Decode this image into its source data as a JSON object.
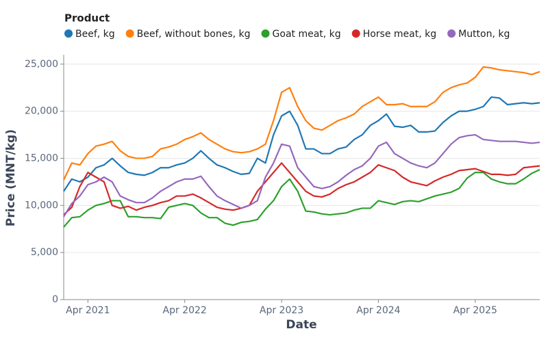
{
  "chart_data": {
    "type": "line",
    "legend_title": "Product",
    "x_label": "Date",
    "y_label": "Price (MNT/kg)",
    "x": [
      "2021-01",
      "2021-02",
      "2021-03",
      "2021-04",
      "2021-05",
      "2021-06",
      "2021-07",
      "2021-08",
      "2021-09",
      "2021-10",
      "2021-11",
      "2021-12",
      "2022-01",
      "2022-02",
      "2022-03",
      "2022-04",
      "2022-05",
      "2022-06",
      "2022-07",
      "2022-08",
      "2022-09",
      "2022-10",
      "2022-11",
      "2022-12",
      "2023-01",
      "2023-02",
      "2023-03",
      "2023-04",
      "2023-05",
      "2023-06",
      "2023-07",
      "2023-08",
      "2023-09",
      "2023-10",
      "2023-11",
      "2023-12",
      "2024-01",
      "2024-02",
      "2024-03",
      "2024-04",
      "2024-05",
      "2024-06",
      "2024-07",
      "2024-08",
      "2024-09",
      "2024-10",
      "2024-11",
      "2024-12",
      "2025-01",
      "2025-02",
      "2025-03",
      "2025-04",
      "2025-05",
      "2025-06",
      "2025-07",
      "2025-08",
      "2025-09",
      "2025-10",
      "2025-11",
      "2025-12"
    ],
    "series": [
      {
        "name": "Beef, kg",
        "color": "#1f77b4",
        "values": [
          11500,
          12800,
          12500,
          13000,
          14000,
          14300,
          15000,
          14200,
          13500,
          13300,
          13200,
          13500,
          14000,
          14000,
          14300,
          14500,
          15000,
          15800,
          15000,
          14300,
          14000,
          13600,
          13300,
          13400,
          15000,
          14500,
          17500,
          19500,
          20000,
          18500,
          16000,
          16000,
          15500,
          15500,
          16000,
          16200,
          17000,
          17500,
          18500,
          19000,
          19700,
          18400,
          18300,
          18500,
          17800,
          17800,
          17900,
          18800,
          19500,
          20000,
          20000,
          20200,
          20500,
          21500,
          21400,
          20700,
          20800,
          20900,
          20800,
          20900
        ]
      },
      {
        "name": "Beef, without bones, kg",
        "color": "#ff7f0e",
        "values": [
          12700,
          14500,
          14300,
          15500,
          16300,
          16500,
          16800,
          15800,
          15200,
          15000,
          15000,
          15200,
          16000,
          16200,
          16500,
          17000,
          17300,
          17700,
          17000,
          16500,
          16000,
          15700,
          15600,
          15700,
          16000,
          16500,
          19000,
          22000,
          22500,
          20500,
          19000,
          18200,
          18000,
          18500,
          19000,
          19300,
          19700,
          20500,
          21000,
          21500,
          20700,
          20700,
          20800,
          20500,
          20500,
          20500,
          21000,
          22000,
          22500,
          22800,
          23000,
          23600,
          24700,
          24600,
          24400,
          24300,
          24200,
          24100,
          23900,
          24200
        ]
      },
      {
        "name": "Goat meat, kg",
        "color": "#2ca02c",
        "values": [
          7700,
          8700,
          8800,
          9500,
          10000,
          10200,
          10500,
          10500,
          8800,
          8800,
          8700,
          8700,
          8600,
          9800,
          10000,
          10200,
          10000,
          9200,
          8700,
          8700,
          8100,
          7900,
          8200,
          8300,
          8500,
          9600,
          10500,
          12000,
          12800,
          11500,
          9400,
          9300,
          9100,
          9000,
          9100,
          9200,
          9500,
          9700,
          9700,
          10500,
          10300,
          10100,
          10400,
          10500,
          10400,
          10700,
          11000,
          11200,
          11400,
          11800,
          12900,
          13500,
          13500,
          12800,
          12500,
          12300,
          12300,
          12800,
          13400,
          13800
        ]
      },
      {
        "name": "Horse meat, kg",
        "color": "#d62728",
        "values": [
          9000,
          9800,
          12000,
          13500,
          13000,
          12500,
          10000,
          9700,
          9900,
          9500,
          9800,
          10000,
          10300,
          10500,
          11000,
          11000,
          11200,
          10800,
          10300,
          9800,
          9600,
          9500,
          9700,
          10000,
          11500,
          12500,
          13500,
          14500,
          13500,
          12500,
          11500,
          11000,
          10900,
          11200,
          11800,
          12200,
          12500,
          13000,
          13500,
          14300,
          14000,
          13700,
          13000,
          12500,
          12300,
          12100,
          12600,
          13000,
          13300,
          13700,
          13800,
          13900,
          13600,
          13300,
          13300,
          13200,
          13300,
          14000,
          14100,
          14200
        ]
      },
      {
        "name": "Mutton, kg",
        "color": "#9467bd",
        "values": [
          8800,
          10200,
          11000,
          12200,
          12500,
          13000,
          12500,
          11000,
          10600,
          10300,
          10300,
          10800,
          11500,
          12000,
          12500,
          12800,
          12800,
          13100,
          12000,
          11000,
          10500,
          10100,
          9700,
          10000,
          10500,
          13000,
          14500,
          16500,
          16300,
          14000,
          13000,
          12000,
          11800,
          12000,
          12500,
          13200,
          13800,
          14200,
          15000,
          16300,
          16700,
          15500,
          15000,
          14500,
          14200,
          14000,
          14500,
          15500,
          16500,
          17200,
          17400,
          17500,
          17000,
          16900,
          16800,
          16800,
          16800,
          16700,
          16600,
          16700
        ]
      }
    ],
    "xlim": [
      "2021-01",
      "2025-12"
    ],
    "xticks": [
      {
        "value": "2021-04",
        "label": "Apr 2021"
      },
      {
        "value": "2022-04",
        "label": "Apr 2022"
      },
      {
        "value": "2023-04",
        "label": "Apr 2023"
      },
      {
        "value": "2024-04",
        "label": "Apr 2024"
      },
      {
        "value": "2025-04",
        "label": "Apr 2025"
      }
    ],
    "ylim": [
      0,
      26000
    ],
    "yticks": [
      0,
      {
        "value": 5000,
        "label": "5,000"
      },
      {
        "value": 10000,
        "label": "10,000"
      },
      {
        "value": 15000,
        "label": "15,000"
      },
      {
        "value": 20000,
        "label": "20,000"
      },
      {
        "value": 25000,
        "label": "25,000"
      }
    ],
    "grid": true
  }
}
